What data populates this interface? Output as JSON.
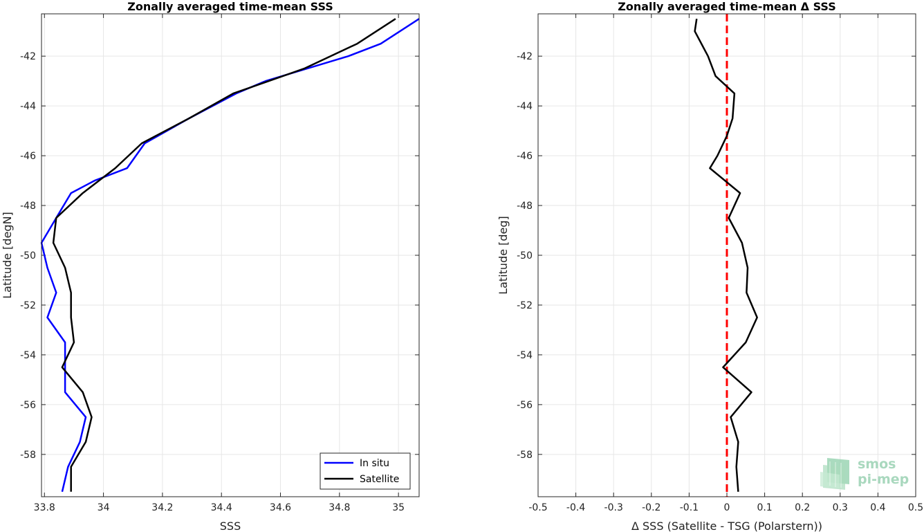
{
  "chart_data": [
    {
      "type": "line",
      "title": "Zonally averaged time-mean SSS",
      "xlabel": "SSS",
      "ylabel": "Latitude [degN]",
      "xlim": [
        33.79,
        35.07
      ],
      "ylim": [
        -59.7,
        -40.3
      ],
      "xticks": [
        33.8,
        34,
        34.2,
        34.4,
        34.6,
        34.8,
        35
      ],
      "xtick_labels": [
        "33.8",
        "34",
        "34.2",
        "34.4",
        "34.6",
        "34.8",
        "35"
      ],
      "yticks": [
        -42,
        -44,
        -46,
        -48,
        -50,
        -52,
        -54,
        -56,
        -58
      ],
      "ytick_labels": [
        "-42",
        "-44",
        "-46",
        "-48",
        "-50",
        "-52",
        "-54",
        "-56",
        "-58"
      ],
      "grid": true,
      "legend": "bottom-right",
      "series": [
        {
          "name": "In situ",
          "color": "#0000ff",
          "x": [
            35.07,
            34.94,
            34.83,
            34.55,
            34.45,
            34.29,
            34.14,
            34.08,
            33.97,
            33.89,
            33.84,
            33.79,
            33.81,
            33.84,
            33.81,
            33.87,
            33.87,
            33.87,
            33.94,
            33.92,
            33.88,
            33.86
          ],
          "y": [
            -40.5,
            -41.5,
            -42.0,
            -43.0,
            -43.5,
            -44.5,
            -45.5,
            -46.5,
            -47.0,
            -47.5,
            -48.5,
            -49.5,
            -50.5,
            -51.5,
            -52.5,
            -53.5,
            -54.5,
            -55.5,
            -56.5,
            -57.5,
            -58.5,
            -59.5
          ]
        },
        {
          "name": "Satellite",
          "color": "#000000",
          "x": [
            34.99,
            34.86,
            34.68,
            34.44,
            34.29,
            34.13,
            34.04,
            33.93,
            33.84,
            33.83,
            33.87,
            33.89,
            33.89,
            33.9,
            33.86,
            33.93,
            33.96,
            33.94,
            33.89,
            33.89
          ],
          "y": [
            -40.5,
            -41.5,
            -42.5,
            -43.5,
            -44.5,
            -45.5,
            -46.5,
            -47.5,
            -48.5,
            -49.5,
            -50.5,
            -51.5,
            -52.5,
            -53.5,
            -54.5,
            -55.5,
            -56.5,
            -57.5,
            -58.5,
            -59.5
          ]
        }
      ]
    },
    {
      "type": "line",
      "title": "Zonally averaged time-mean Δ SSS",
      "xlabel": "Δ SSS (Satellite - TSG (Polarstern))",
      "ylabel": "Latitude [deg]",
      "xlim": [
        -0.5,
        0.5
      ],
      "ylim": [
        -59.7,
        -40.3
      ],
      "xticks": [
        -0.5,
        -0.4,
        -0.3,
        -0.2,
        -0.1,
        0,
        0.1,
        0.2,
        0.3,
        0.4,
        0.5
      ],
      "xtick_labels": [
        "-0.5",
        "-0.4",
        "-0.3",
        "-0.2",
        "-0.1",
        "0",
        "0.1",
        "0.2",
        "0.3",
        "0.4",
        "0.5"
      ],
      "yticks": [
        -42,
        -44,
        -46,
        -48,
        -50,
        -52,
        -54,
        -56,
        -58
      ],
      "ytick_labels": [
        "-42",
        "-44",
        "-46",
        "-48",
        "-50",
        "-52",
        "-54",
        "-56",
        "-58"
      ],
      "grid": true,
      "reference_line": {
        "x": 0,
        "color": "#ff0000",
        "style": "dashed"
      },
      "series": [
        {
          "color": "#000000",
          "x": [
            -0.08,
            -0.085,
            -0.05,
            -0.03,
            0.02,
            0.015,
            0.0,
            -0.025,
            -0.045,
            0.035,
            0.005,
            0.04,
            0.055,
            0.052,
            0.08,
            0.05,
            -0.01,
            0.065,
            0.01,
            0.03,
            0.025,
            0.03
          ],
          "y": [
            -40.5,
            -41.0,
            -42.0,
            -42.8,
            -43.5,
            -44.5,
            -45.2,
            -46.0,
            -46.5,
            -47.5,
            -48.5,
            -49.5,
            -50.5,
            -51.5,
            -52.5,
            -53.5,
            -54.5,
            -55.5,
            -56.5,
            -57.5,
            -58.5,
            -59.5
          ]
        }
      ]
    }
  ],
  "logo": {
    "line1": "smos",
    "line2": "pi-mep",
    "color": "#a9d8be"
  }
}
